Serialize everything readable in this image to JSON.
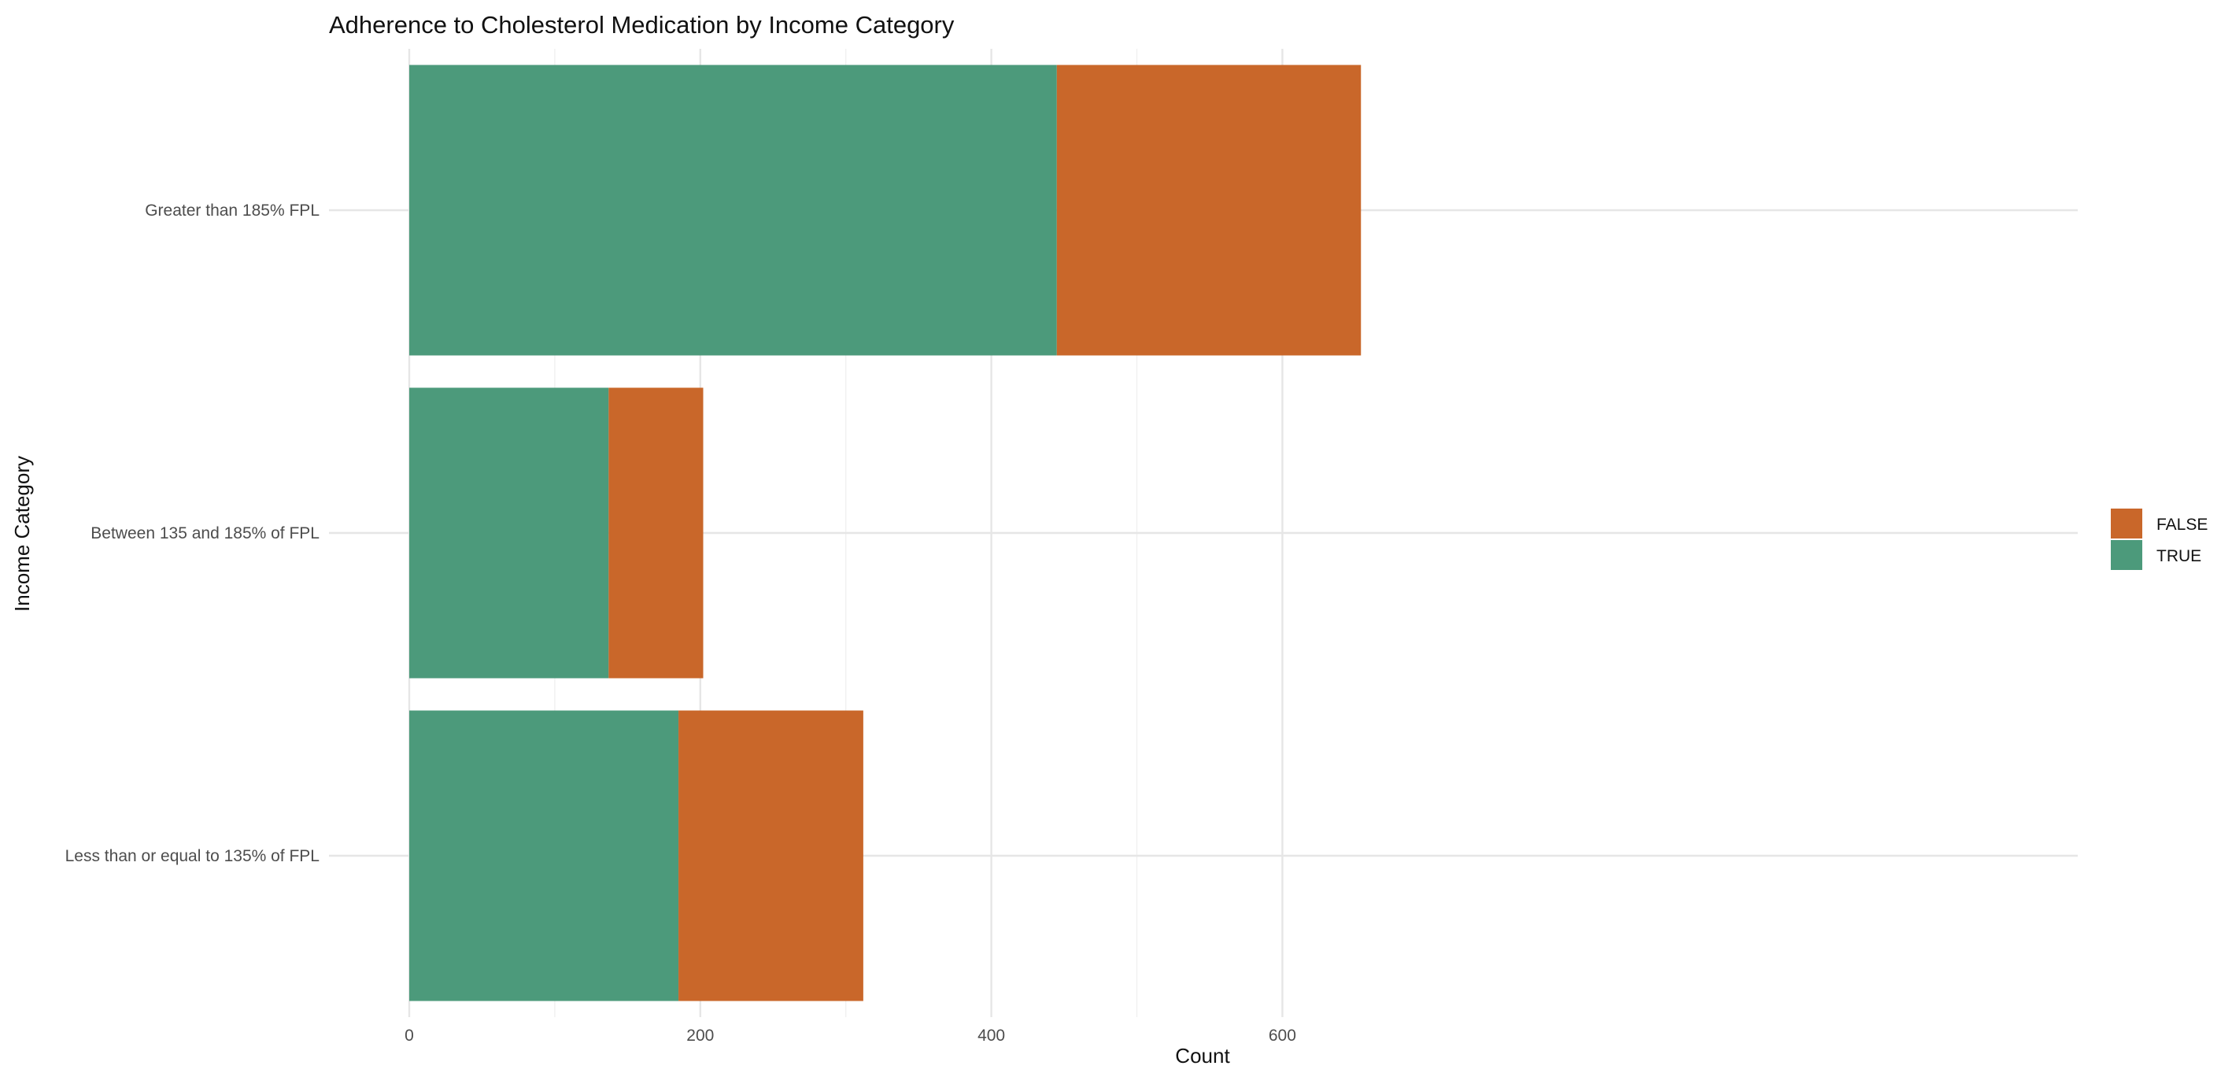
{
  "chart_data": {
    "type": "bar",
    "orientation": "horizontal",
    "stacked": true,
    "title": "Adherence to Cholesterol Medication by Income Category",
    "xlabel": "Count",
    "ylabel": "Income Category",
    "xlim": [
      0,
      690
    ],
    "xticks": [
      0,
      200,
      400,
      600
    ],
    "grid": true,
    "legend_position": "right",
    "categories": [
      "Greater than 185% FPL",
      "Between 135 and 185% of FPL",
      "Less than or equal to 135% of FPL"
    ],
    "series": [
      {
        "name": "TRUE",
        "color": "#4C9A7B",
        "values": [
          445,
          137,
          185
        ]
      },
      {
        "name": "FALSE",
        "color": "#C9672A",
        "values": [
          209,
          65,
          127
        ]
      }
    ],
    "legend": [
      {
        "label": "FALSE",
        "color": "#C9672A"
      },
      {
        "label": "TRUE",
        "color": "#4C9A7B"
      }
    ]
  }
}
